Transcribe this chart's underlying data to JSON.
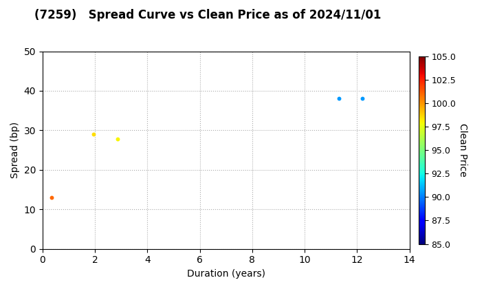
{
  "title": "(7259)   Spread Curve vs Clean Price as of 2024/11/01",
  "xlabel": "Duration (years)",
  "ylabel": "Spread (bp)",
  "colorbar_label": "Clean Price",
  "xlim": [
    0,
    14
  ],
  "ylim": [
    0,
    50
  ],
  "xticks": [
    0,
    2,
    4,
    6,
    8,
    10,
    12,
    14
  ],
  "yticks": [
    0,
    10,
    20,
    30,
    40,
    50
  ],
  "cmap_range": [
    85.0,
    105.0
  ],
  "cmap_ticks": [
    85.0,
    87.5,
    90.0,
    92.5,
    95.0,
    97.5,
    100.0,
    102.5,
    105.0
  ],
  "points": [
    {
      "duration": 0.35,
      "spread": 13.0,
      "clean_price": 101.0
    },
    {
      "duration": 1.95,
      "spread": 29.0,
      "clean_price": 98.5
    },
    {
      "duration": 2.85,
      "spread": 27.8,
      "clean_price": 98.0
    },
    {
      "duration": 11.3,
      "spread": 38.0,
      "clean_price": 90.5
    },
    {
      "duration": 12.2,
      "spread": 38.0,
      "clean_price": 90.5
    }
  ],
  "marker_size": 18,
  "background_color": "#ffffff",
  "grid_color": "#aaaaaa",
  "title_fontsize": 12,
  "title_fontweight": "bold",
  "axis_label_fontsize": 10,
  "tick_fontsize": 10,
  "colorbar_tick_fontsize": 9,
  "colorbar_label_fontsize": 10
}
